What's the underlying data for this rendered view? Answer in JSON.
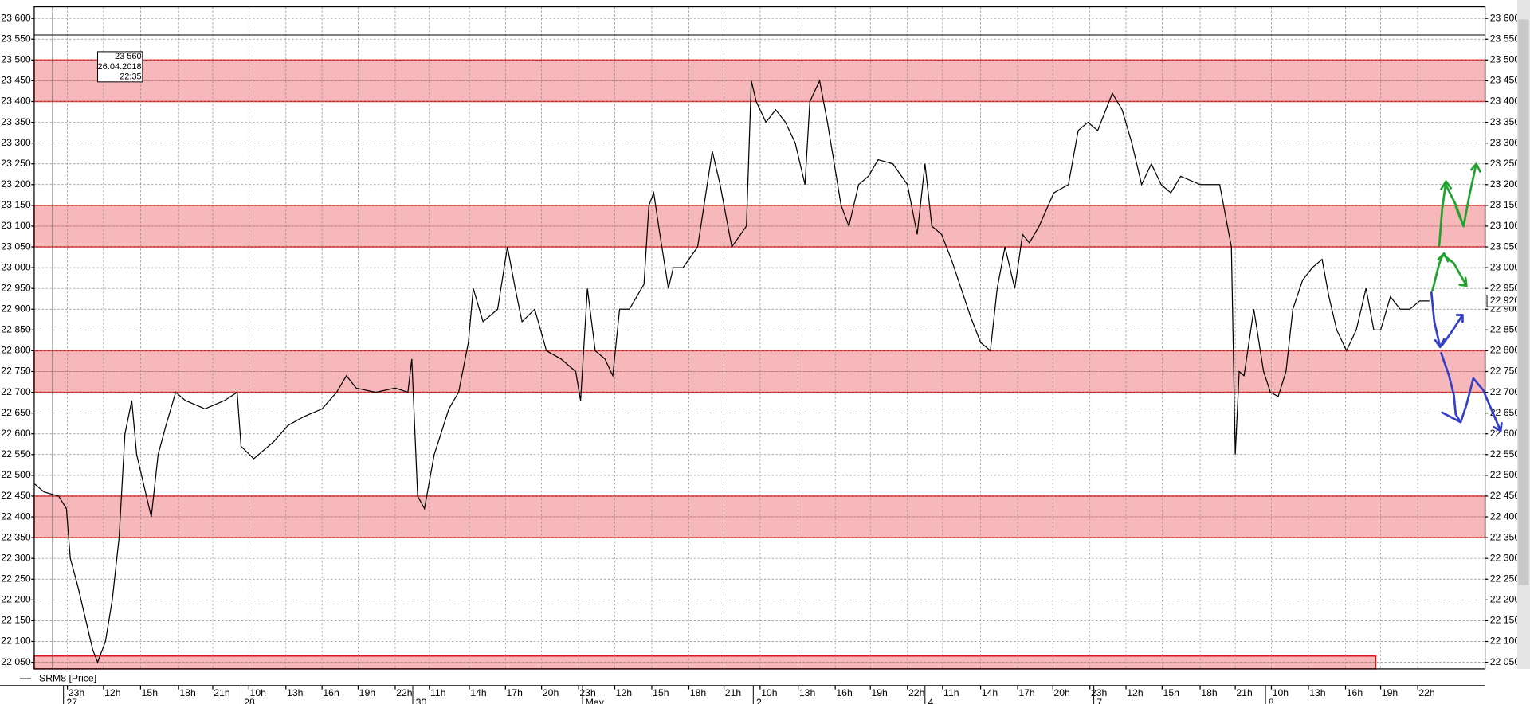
{
  "chart_data": {
    "type": "line",
    "legend": "SRM8 [Price]",
    "xlim": [
      0,
      1487
    ],
    "ylim": [
      22034,
      23628
    ],
    "yticks": [
      {
        "value": 22050,
        "label": "22 050"
      },
      {
        "value": 22100,
        "label": "22 100"
      },
      {
        "value": 22150,
        "label": "22 150"
      },
      {
        "value": 22200,
        "label": "22 200"
      },
      {
        "value": 22250,
        "label": "22 250"
      },
      {
        "value": 22300,
        "label": "22 300"
      },
      {
        "value": 22350,
        "label": "22 350"
      },
      {
        "value": 22400,
        "label": "22 400"
      },
      {
        "value": 22450,
        "label": "22 450"
      },
      {
        "value": 22500,
        "label": "22 500"
      },
      {
        "value": 22550,
        "label": "22 550"
      },
      {
        "value": 22600,
        "label": "22 600"
      },
      {
        "value": 22650,
        "label": "22 650"
      },
      {
        "value": 22700,
        "label": "22 700"
      },
      {
        "value": 22750,
        "label": "22 750"
      },
      {
        "value": 22800,
        "label": "22 800"
      },
      {
        "value": 22850,
        "label": "22 850"
      },
      {
        "value": 22900,
        "label": "22 900"
      },
      {
        "value": 22950,
        "label": "22 950"
      },
      {
        "value": 23000,
        "label": "23 000"
      },
      {
        "value": 23050,
        "label": "23 050"
      },
      {
        "value": 23100,
        "label": "23 100"
      },
      {
        "value": 23150,
        "label": "23 150"
      },
      {
        "value": 23200,
        "label": "23 200"
      },
      {
        "value": 23250,
        "label": "23 250"
      },
      {
        "value": 23300,
        "label": "23 300"
      },
      {
        "value": 23350,
        "label": "23 350"
      },
      {
        "value": 23400,
        "label": "23 400"
      },
      {
        "value": 23450,
        "label": "23 450"
      },
      {
        "value": 23500,
        "label": "23 500"
      },
      {
        "value": 23550,
        "label": "23 550"
      },
      {
        "value": 23600,
        "label": "23 600"
      }
    ],
    "xticks": [
      {
        "value": 34,
        "label": "23h"
      },
      {
        "value": 71,
        "label": "12h"
      },
      {
        "value": 109,
        "label": "15h"
      },
      {
        "value": 148,
        "label": "18h"
      },
      {
        "value": 183,
        "label": "21h"
      },
      {
        "value": 220,
        "label": "10h"
      },
      {
        "value": 258,
        "label": "13h"
      },
      {
        "value": 295,
        "label": "16h"
      },
      {
        "value": 332,
        "label": "19h"
      },
      {
        "value": 370,
        "label": "22h"
      },
      {
        "value": 405,
        "label": "11h"
      },
      {
        "value": 446,
        "label": "14h"
      },
      {
        "value": 483,
        "label": "17h"
      },
      {
        "value": 520,
        "label": "20h"
      },
      {
        "value": 558,
        "label": "23h"
      },
      {
        "value": 595,
        "label": "12h"
      },
      {
        "value": 633,
        "label": "15h"
      },
      {
        "value": 671,
        "label": "18h"
      },
      {
        "value": 707,
        "label": "21h"
      },
      {
        "value": 744,
        "label": "10h"
      },
      {
        "value": 783,
        "label": "13h"
      },
      {
        "value": 821,
        "label": "16h"
      },
      {
        "value": 857,
        "label": "19h"
      },
      {
        "value": 895,
        "label": "22h"
      },
      {
        "value": 931,
        "label": "11h"
      },
      {
        "value": 970,
        "label": "14h"
      },
      {
        "value": 1008,
        "label": "17h"
      },
      {
        "value": 1044,
        "label": "20h"
      },
      {
        "value": 1082,
        "label": "23h"
      },
      {
        "value": 1119,
        "label": "12h"
      },
      {
        "value": 1156,
        "label": "15h"
      },
      {
        "value": 1195,
        "label": "18h"
      },
      {
        "value": 1231,
        "label": "21h"
      },
      {
        "value": 1268,
        "label": "10h"
      },
      {
        "value": 1306,
        "label": "13h"
      },
      {
        "value": 1344,
        "label": "16h"
      },
      {
        "value": 1380,
        "label": "19h"
      },
      {
        "value": 1418,
        "label": "22h"
      }
    ],
    "day_ticks": [
      {
        "value": 30,
        "label": "27"
      },
      {
        "value": 212,
        "label": "28"
      },
      {
        "value": 388,
        "label": "30"
      },
      {
        "value": 562,
        "label": "May"
      },
      {
        "value": 737,
        "label": "2"
      },
      {
        "value": 913,
        "label": "4"
      },
      {
        "value": 1086,
        "label": "7"
      },
      {
        "value": 1262,
        "label": "8"
      }
    ],
    "zones": [
      {
        "from": 23400,
        "to": 23500
      },
      {
        "from": 23050,
        "to": 23150
      },
      {
        "from": 22700,
        "to": 22800
      },
      {
        "from": 22350,
        "to": 22450
      },
      {
        "from": 22034,
        "to": 22065,
        "x_end": 1375
      }
    ],
    "cursor": {
      "x": 19,
      "price": 23560,
      "price_label": "23 560",
      "date": "26.04.2018",
      "time": "22:35"
    },
    "last": {
      "value": 22920,
      "label": "22 920"
    },
    "series": [
      {
        "name": "SRM8 [Price]",
        "color": "#000000",
        "x": [
          0,
          10,
          25,
          33,
          37,
          45,
          53,
          60,
          65,
          73,
          80,
          87,
          93,
          100,
          105,
          115,
          120,
          127,
          135,
          145,
          155,
          175,
          195,
          208,
          212,
          225,
          235,
          245,
          260,
          275,
          295,
          310,
          320,
          330,
          350,
          370,
          383,
          387,
          393,
          400,
          410,
          425,
          435,
          445,
          450,
          460,
          475,
          485,
          493,
          500,
          513,
          525,
          540,
          555,
          560,
          567,
          575,
          585,
          593,
          600,
          610,
          625,
          630,
          635,
          640,
          650,
          655,
          665,
          680,
          695,
          703,
          715,
          730,
          735,
          740,
          750,
          760,
          770,
          780,
          790,
          795,
          805,
          813,
          820,
          827,
          835,
          845,
          855,
          865,
          880,
          895,
          905,
          913,
          920,
          930,
          940,
          950,
          960,
          970,
          980,
          987,
          995,
          1005,
          1013,
          1020,
          1030,
          1045,
          1060,
          1070,
          1080,
          1090,
          1105,
          1115,
          1125,
          1135,
          1145,
          1155,
          1165,
          1175,
          1195,
          1215,
          1227,
          1231,
          1235,
          1240,
          1250,
          1260,
          1267,
          1275,
          1283,
          1290,
          1300,
          1310,
          1320,
          1327,
          1335,
          1345,
          1355,
          1365,
          1373,
          1380,
          1390,
          1400,
          1410,
          1420,
          1430
        ],
        "values": [
          22480,
          22460,
          22450,
          22420,
          22300,
          22230,
          22150,
          22080,
          22050,
          22100,
          22200,
          22350,
          22600,
          22680,
          22550,
          22450,
          22400,
          22550,
          22620,
          22700,
          22680,
          22660,
          22680,
          22700,
          22570,
          22540,
          22560,
          22580,
          22620,
          22640,
          22660,
          22700,
          22740,
          22710,
          22700,
          22710,
          22700,
          22780,
          22450,
          22420,
          22550,
          22660,
          22700,
          22820,
          22950,
          22870,
          22900,
          23050,
          22950,
          22870,
          22900,
          22800,
          22780,
          22750,
          22680,
          22950,
          22800,
          22780,
          22740,
          22900,
          22900,
          22960,
          23150,
          23180,
          23100,
          22950,
          23000,
          23000,
          23050,
          23280,
          23200,
          23050,
          23100,
          23450,
          23400,
          23350,
          23380,
          23350,
          23300,
          23200,
          23400,
          23450,
          23350,
          23250,
          23150,
          23100,
          23200,
          23220,
          23260,
          23250,
          23200,
          23080,
          23250,
          23100,
          23080,
          23020,
          22950,
          22880,
          22820,
          22800,
          22950,
          23050,
          22950,
          23080,
          23060,
          23100,
          23180,
          23200,
          23330,
          23350,
          23330,
          23420,
          23380,
          23300,
          23200,
          23250,
          23200,
          23180,
          23220,
          23200,
          23200,
          23050,
          22550,
          22750,
          22740,
          22900,
          22750,
          22700,
          22690,
          22750,
          22900,
          22970,
          23000,
          23020,
          22930,
          22850,
          22800,
          22850,
          22950,
          22850,
          22850,
          22930,
          22900,
          22900,
          22920,
          22920
        ]
      }
    ]
  }
}
